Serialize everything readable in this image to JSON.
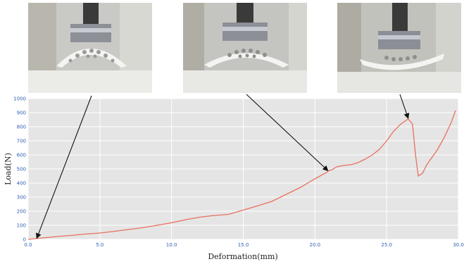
{
  "chart_data": {
    "type": "line",
    "xlabel": "Deformation(mm)",
    "ylabel": "Load(N)",
    "xlim": [
      0,
      30
    ],
    "ylim": [
      0,
      1000
    ],
    "xticks": [
      "0.0",
      "5.0",
      "10.0",
      "15.0",
      "20.0",
      "25.0",
      "30.0"
    ],
    "yticks": [
      "0",
      "100",
      "200",
      "300",
      "400",
      "500",
      "600",
      "700",
      "800",
      "900",
      "1000"
    ],
    "grid": true,
    "series": [
      {
        "color": "#e8705f",
        "x": [
          0,
          1,
          2,
          3,
          4,
          5,
          6,
          7,
          8,
          9,
          10,
          11,
          12,
          13,
          14,
          15,
          16,
          17,
          18,
          19,
          20,
          20.8,
          21.0,
          21.2,
          21.5,
          22,
          22.5,
          23,
          23.5,
          24,
          24.5,
          25,
          25.5,
          26,
          26.5,
          26.8,
          27.0,
          27.2,
          27.5,
          27.8,
          28.0,
          28.5,
          29,
          29.5,
          29.8
        ],
        "y": [
          0,
          10,
          20,
          28,
          38,
          45,
          57,
          70,
          83,
          100,
          118,
          140,
          158,
          170,
          178,
          208,
          238,
          270,
          320,
          370,
          430,
          475,
          490,
          495,
          515,
          525,
          530,
          545,
          570,
          600,
          640,
          700,
          770,
          820,
          855,
          820,
          610,
          450,
          470,
          530,
          560,
          630,
          720,
          830,
          915
        ]
      }
    ],
    "annotations": [
      "arrow",
      "arrow",
      "arrow"
    ]
  },
  "photos": [
    {
      "subject": "compression-test-start-photo"
    },
    {
      "subject": "compression-test-mid-photo"
    },
    {
      "subject": "compression-test-peak-photo"
    }
  ]
}
